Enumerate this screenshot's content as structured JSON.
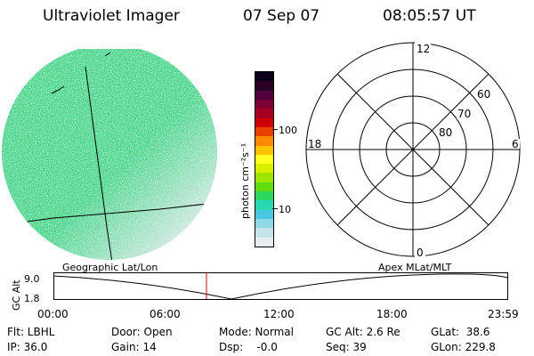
{
  "header": {
    "title": "Ultraviolet Imager",
    "date": "07 Sep 07",
    "time": "08:05:57 UT"
  },
  "colorbar": {
    "unit_label": "photon cm⁻²s⁻¹",
    "ticks": [
      "100",
      "10"
    ],
    "colors": [
      "#0b0018",
      "#2a0026",
      "#52003b",
      "#7a0037",
      "#a30023",
      "#cc0000",
      "#e84000",
      "#ff8a00",
      "#ffc400",
      "#ffff20",
      "#d8f000",
      "#9ee600",
      "#60dc10",
      "#2dd860",
      "#28d8b0",
      "#4ac8e0",
      "#8ed8e8",
      "#c4e4ea",
      "#e8eef0"
    ]
  },
  "polar": {
    "labels": {
      "top": "12",
      "bottom": "0",
      "left": "18",
      "right": "6"
    },
    "lat_labels": [
      "60",
      "70",
      "80"
    ]
  },
  "timeline": {
    "left_caption": "Geographic Lat/Lon",
    "right_caption": "Apex  MLat/MLT",
    "ylabel": "GC Alt",
    "y_ticks": [
      "9.0",
      "1.8"
    ],
    "x_ticks": [
      "00:00",
      "06:00",
      "12:00",
      "18:00",
      "23:59"
    ],
    "current_marker_color": "#cc0000"
  },
  "info": {
    "col1": [
      "Flt: LBHL",
      "IP: 36.0"
    ],
    "col2": [
      "Door: Open",
      "Gain: 14"
    ],
    "col3": [
      "Mode: Normal",
      "Dsp:    -0.0"
    ],
    "col4": [
      "GC Alt: 2.6 Re",
      "Seq: 39"
    ],
    "col5": [
      "GLat:  38.6",
      "GLon: 229.8"
    ]
  }
}
